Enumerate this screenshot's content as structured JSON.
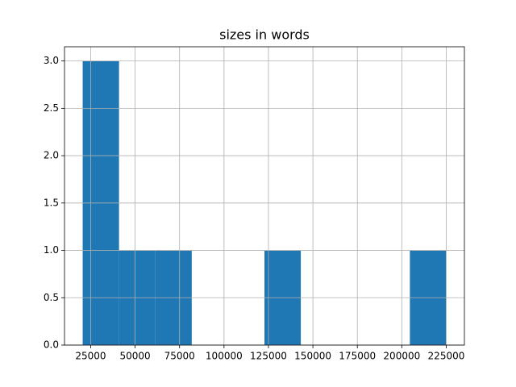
{
  "chart_data": {
    "type": "histogram",
    "title": "sizes in words",
    "bins": [
      20500,
      40950,
      61400,
      81850,
      102300,
      122750,
      143200,
      163650,
      184100,
      204550,
      225000
    ],
    "values": [
      3,
      1,
      1,
      0,
      0,
      1,
      0,
      0,
      0,
      1
    ],
    "color": "#1f77b4",
    "xlim": [
      10275,
      235225
    ],
    "xticks": [
      25000,
      50000,
      75000,
      100000,
      125000,
      150000,
      175000,
      200000,
      225000
    ],
    "ylim": [
      0,
      3.15
    ],
    "yticks": [
      {
        "value": 0,
        "label": "0.0"
      },
      0.5,
      {
        "value": 1,
        "label": "1.0"
      },
      1.5,
      {
        "value": 2,
        "label": "2.0"
      },
      2.5,
      {
        "value": 3,
        "label": "3.0"
      }
    ],
    "grid": true
  }
}
